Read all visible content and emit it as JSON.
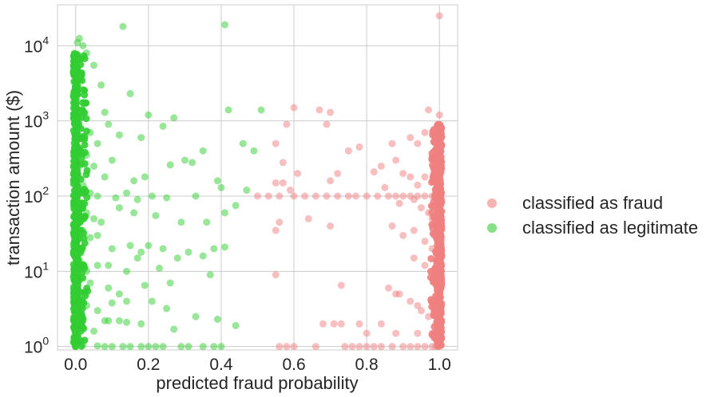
{
  "chart_data": {
    "type": "scatter",
    "title": "",
    "xlabel": "predicted fraud probability",
    "ylabel": "transaction amount ($)",
    "xlim": [
      -0.05,
      1.05
    ],
    "ylim": [
      0.9,
      35000
    ],
    "yscale": "log",
    "grid": true,
    "legend_position": "right",
    "x_ticks": [
      {
        "value": 0.0,
        "label": "0.0"
      },
      {
        "value": 0.2,
        "label": "0.2"
      },
      {
        "value": 0.4,
        "label": "0.4"
      },
      {
        "value": 0.6,
        "label": "0.6"
      },
      {
        "value": 0.8,
        "label": "0.8"
      },
      {
        "value": 1.0,
        "label": "1.0"
      }
    ],
    "y_ticks": [
      {
        "value": 1,
        "base": "10",
        "exp": "0"
      },
      {
        "value": 10,
        "base": "10",
        "exp": "1"
      },
      {
        "value": 100,
        "base": "10",
        "exp": "2"
      },
      {
        "value": 1000,
        "base": "10",
        "exp": "3"
      },
      {
        "value": 10000,
        "base": "10",
        "exp": "4"
      }
    ],
    "series": [
      {
        "name": "classified as legitimate",
        "color": "#32cd32",
        "dense_column": {
          "x": 0.0,
          "y_range": [
            1,
            8000
          ]
        },
        "points": [
          [
            0.0,
            1
          ],
          [
            0.005,
            11000
          ],
          [
            0.01,
            12500
          ],
          [
            0.02,
            10000
          ],
          [
            0.03,
            8000
          ],
          [
            0.05,
            5500
          ],
          [
            0.13,
            18000
          ],
          [
            0.41,
            19000
          ],
          [
            0.07,
            3000
          ],
          [
            0.08,
            1300
          ],
          [
            0.15,
            2300
          ],
          [
            0.2,
            1200
          ],
          [
            0.27,
            1100
          ],
          [
            0.42,
            1400
          ],
          [
            0.51,
            1400
          ],
          [
            0.04,
            700
          ],
          [
            0.06,
            500
          ],
          [
            0.09,
            900
          ],
          [
            0.12,
            650
          ],
          [
            0.18,
            600
          ],
          [
            0.24,
            850
          ],
          [
            0.3,
            300
          ],
          [
            0.35,
            400
          ],
          [
            0.46,
            500
          ],
          [
            0.49,
            400
          ],
          [
            0.03,
            350
          ],
          [
            0.05,
            250
          ],
          [
            0.08,
            180
          ],
          [
            0.1,
            300
          ],
          [
            0.16,
            160
          ],
          [
            0.19,
            180
          ],
          [
            0.26,
            260
          ],
          [
            0.32,
            280
          ],
          [
            0.4,
            130
          ],
          [
            0.47,
            120
          ],
          [
            0.02,
            140
          ],
          [
            0.04,
            110
          ],
          [
            0.06,
            100
          ],
          [
            0.11,
            95
          ],
          [
            0.14,
            110
          ],
          [
            0.17,
            90
          ],
          [
            0.21,
            100
          ],
          [
            0.25,
            95
          ],
          [
            0.33,
            100
          ],
          [
            0.39,
            160
          ],
          [
            0.01,
            80
          ],
          [
            0.03,
            60
          ],
          [
            0.05,
            50
          ],
          [
            0.07,
            45
          ],
          [
            0.12,
            70
          ],
          [
            0.16,
            60
          ],
          [
            0.22,
            55
          ],
          [
            0.29,
            45
          ],
          [
            0.36,
            45
          ],
          [
            0.41,
            60
          ],
          [
            0.44,
            75
          ],
          [
            0.02,
            35
          ],
          [
            0.04,
            28
          ],
          [
            0.06,
            30
          ],
          [
            0.1,
            20
          ],
          [
            0.15,
            22
          ],
          [
            0.18,
            18
          ],
          [
            0.2,
            22
          ],
          [
            0.24,
            20
          ],
          [
            0.28,
            15
          ],
          [
            0.31,
            18
          ],
          [
            0.35,
            16
          ],
          [
            0.38,
            20
          ],
          [
            0.41,
            21
          ],
          [
            0.01,
            14
          ],
          [
            0.03,
            10
          ],
          [
            0.06,
            12
          ],
          [
            0.09,
            12
          ],
          [
            0.14,
            10
          ],
          [
            0.17,
            15
          ],
          [
            0.23,
            11
          ],
          [
            0.02,
            8
          ],
          [
            0.04,
            7
          ],
          [
            0.09,
            6
          ],
          [
            0.12,
            5
          ],
          [
            0.19,
            6.5
          ],
          [
            0.26,
            7
          ],
          [
            0.37,
            9
          ],
          [
            0.01,
            4
          ],
          [
            0.03,
            3.5
          ],
          [
            0.06,
            3
          ],
          [
            0.08,
            2.2
          ],
          [
            0.1,
            3.8
          ],
          [
            0.14,
            4
          ],
          [
            0.21,
            4
          ],
          [
            0.25,
            3.2
          ],
          [
            0.33,
            2.5
          ],
          [
            0.39,
            2.3
          ],
          [
            0.09,
            2.2
          ],
          [
            0.12,
            2.2
          ],
          [
            0.14,
            2.1
          ],
          [
            0.18,
            2.0
          ],
          [
            0.02,
            1.8
          ],
          [
            0.05,
            1.6
          ],
          [
            0.27,
            1.7
          ],
          [
            0.44,
            1.9
          ],
          [
            0.1,
            1.0
          ],
          [
            0.13,
            1.0
          ],
          [
            0.15,
            1.0
          ],
          [
            0.18,
            1.0
          ],
          [
            0.2,
            1.0
          ],
          [
            0.22,
            1.0
          ],
          [
            0.24,
            1.0
          ],
          [
            0.29,
            1.0
          ],
          [
            0.31,
            1.0
          ],
          [
            0.35,
            1.0
          ],
          [
            0.38,
            1.0
          ],
          [
            0.4,
            1.0
          ],
          [
            0.02,
            1.05
          ],
          [
            0.06,
            1.02
          ],
          [
            0.08,
            1.0
          ]
        ]
      },
      {
        "name": "classified as fraud",
        "color": "#f08080",
        "dense_column": {
          "x": 1.0,
          "y_range": [
            1,
            900
          ]
        },
        "points": [
          [
            1.0,
            25000
          ],
          [
            1.0,
            1200
          ],
          [
            0.99,
            700
          ],
          [
            0.97,
            1400
          ],
          [
            0.96,
            700
          ],
          [
            0.94,
            500
          ],
          [
            0.92,
            600
          ],
          [
            0.88,
            300
          ],
          [
            0.87,
            500
          ],
          [
            0.84,
            250
          ],
          [
            0.78,
            450
          ],
          [
            0.75,
            400
          ],
          [
            0.7,
            1300
          ],
          [
            0.69,
            900
          ],
          [
            0.67,
            1400
          ],
          [
            0.6,
            1500
          ],
          [
            0.58,
            900
          ],
          [
            0.55,
            500
          ],
          [
            0.57,
            280
          ],
          [
            0.61,
            200
          ],
          [
            0.57,
            150
          ],
          [
            0.72,
            200
          ],
          [
            0.7,
            160
          ],
          [
            0.82,
            210
          ],
          [
            0.9,
            200
          ],
          [
            0.92,
            180
          ],
          [
            0.94,
            140
          ],
          [
            0.96,
            180
          ],
          [
            0.98,
            160
          ],
          [
            0.99,
            120
          ],
          [
            0.5,
            100
          ],
          [
            0.53,
            100
          ],
          [
            0.56,
            100
          ],
          [
            0.6,
            100
          ],
          [
            0.63,
            100
          ],
          [
            0.66,
            100
          ],
          [
            0.69,
            100
          ],
          [
            0.72,
            100
          ],
          [
            0.75,
            100
          ],
          [
            0.77,
            100
          ],
          [
            0.8,
            100
          ],
          [
            0.83,
            100
          ],
          [
            0.86,
            100
          ],
          [
            0.88,
            100
          ],
          [
            0.9,
            100
          ],
          [
            0.92,
            100
          ],
          [
            0.94,
            100
          ],
          [
            0.96,
            100
          ],
          [
            0.98,
            100
          ],
          [
            0.55,
            150
          ],
          [
            0.59,
            120
          ],
          [
            0.85,
            130
          ],
          [
            0.89,
            80
          ],
          [
            0.93,
            90
          ],
          [
            0.95,
            70
          ],
          [
            0.97,
            60
          ],
          [
            0.99,
            55
          ],
          [
            0.56,
            45
          ],
          [
            0.64,
            50
          ],
          [
            0.7,
            40
          ],
          [
            0.87,
            40
          ],
          [
            0.9,
            30
          ],
          [
            0.93,
            35
          ],
          [
            0.96,
            25
          ],
          [
            0.98,
            50
          ],
          [
            0.55,
            35
          ],
          [
            0.98,
            20
          ],
          [
            0.93,
            15
          ],
          [
            0.96,
            12
          ],
          [
            0.98,
            10
          ],
          [
            0.55,
            9
          ],
          [
            0.73,
            6.5
          ],
          [
            0.86,
            6
          ],
          [
            0.88,
            5
          ],
          [
            0.89,
            5
          ],
          [
            0.92,
            4
          ],
          [
            0.94,
            3.5
          ],
          [
            0.95,
            3
          ],
          [
            0.97,
            2.5
          ],
          [
            0.99,
            2
          ],
          [
            0.68,
            2
          ],
          [
            0.71,
            2
          ],
          [
            0.73,
            2
          ],
          [
            0.78,
            2
          ],
          [
            0.84,
            2
          ],
          [
            0.8,
            1.5
          ],
          [
            0.88,
            1.5
          ],
          [
            0.94,
            1.5
          ],
          [
            0.98,
            1.5
          ],
          [
            0.56,
            1.0
          ],
          [
            0.58,
            1.0
          ],
          [
            0.6,
            1.0
          ],
          [
            0.66,
            1.0
          ],
          [
            0.74,
            1.0
          ],
          [
            0.76,
            1.0
          ],
          [
            0.78,
            1.0
          ],
          [
            0.8,
            1.0
          ],
          [
            0.82,
            1.0
          ],
          [
            0.84,
            1.0
          ],
          [
            0.87,
            1.0
          ],
          [
            0.9,
            1.0
          ],
          [
            0.92,
            1.0
          ],
          [
            0.94,
            1.0
          ],
          [
            0.96,
            1.0
          ],
          [
            0.98,
            1.0
          ],
          [
            0.99,
            1.0
          ],
          [
            1.0,
            1.0
          ]
        ]
      }
    ],
    "legend": [
      {
        "label": "classified as fraud",
        "color": "#f08080"
      },
      {
        "label": "classified as legitimate",
        "color": "#32cd32"
      }
    ]
  }
}
